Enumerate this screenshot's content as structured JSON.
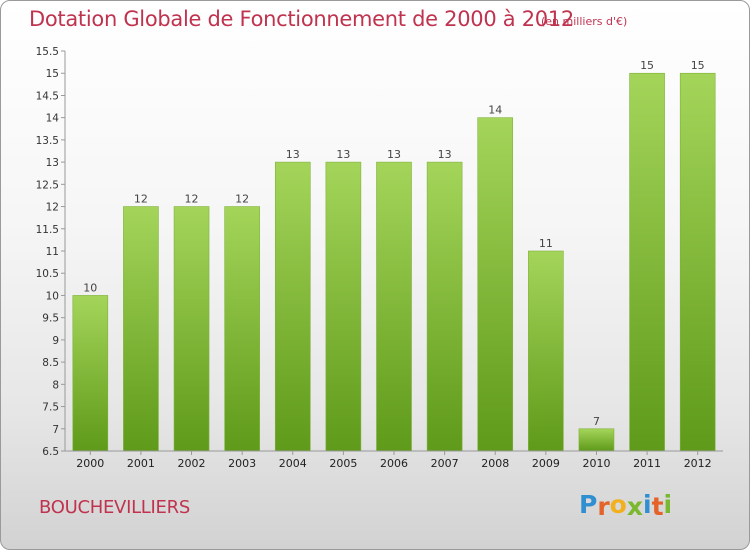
{
  "title": "Dotation Globale de Fonctionnement de 2000 à 2012",
  "unit_note": "(en milliers d'€)",
  "commune": "BOUCHEVILLIERS",
  "logo": {
    "letters": [
      "P",
      "r",
      "o",
      "x",
      "i",
      "t",
      "i"
    ],
    "colors": [
      "#2f8fd0",
      "#e4632a",
      "#f2b01e",
      "#7ab830",
      "#2f8fd0",
      "#e4632a",
      "#7ab830"
    ]
  },
  "colors": {
    "bar_light": "#a4d55a",
    "bar_dark": "#5f9a1a",
    "title": "#c0334f"
  },
  "chart_data": {
    "type": "bar",
    "categories": [
      "2000",
      "2001",
      "2002",
      "2003",
      "2004",
      "2005",
      "2006",
      "2007",
      "2008",
      "2009",
      "2010",
      "2011",
      "2012"
    ],
    "values": [
      10,
      12,
      12,
      12,
      13,
      13,
      13,
      13,
      14,
      11,
      7,
      15,
      15
    ],
    "data_labels": [
      "10",
      "12",
      "12",
      "12",
      "13",
      "13",
      "13",
      "13",
      "14",
      "11",
      "7",
      "15",
      "15"
    ],
    "title": "Dotation Globale de Fonctionnement de 2000 à 2012",
    "ylim": [
      6.5,
      15.5
    ],
    "yticks": [
      "6.5",
      "7",
      "7.5",
      "8",
      "8.5",
      "9",
      "9.5",
      "10",
      "10.5",
      "11",
      "11.5",
      "12",
      "12.5",
      "13",
      "13.5",
      "14",
      "14.5",
      "15",
      "15.5"
    ],
    "grid": false,
    "legend": "none"
  }
}
